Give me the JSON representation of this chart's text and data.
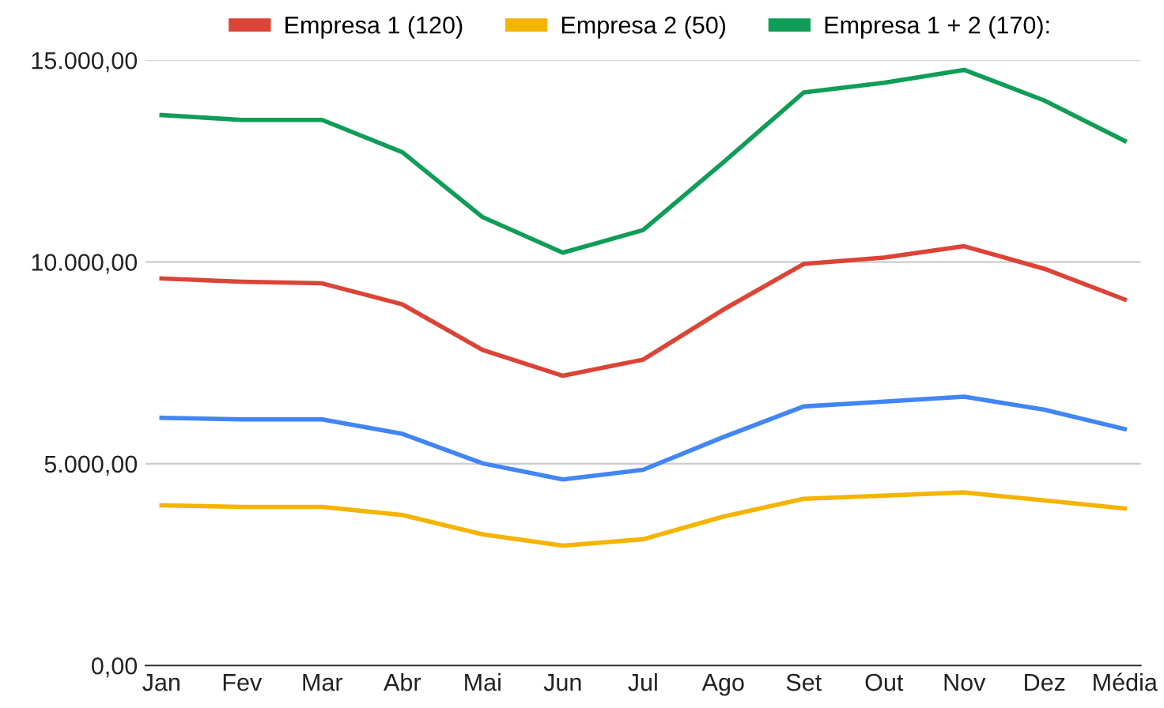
{
  "chart_data": {
    "type": "line",
    "categories": [
      "Jan",
      "Fev",
      "Mar",
      "Abr",
      "Mai",
      "Jun",
      "Jul",
      "Ago",
      "Set",
      "Out",
      "Nov",
      "Dez",
      "Média"
    ],
    "series": [
      {
        "color": "#4285f4",
        "values": [
          6140,
          6100,
          6100,
          5740,
          5010,
          4610,
          4850,
          5660,
          6420,
          6540,
          6660,
          6340,
          5860
        ]
      },
      {
        "name": "Empresa 1 (120)",
        "color": "#db4437",
        "values": [
          9590,
          9510,
          9470,
          8950,
          7820,
          7180,
          7580,
          8820,
          9950,
          10110,
          10390,
          9830,
          9070
        ]
      },
      {
        "name": "Empresa 2 (50)",
        "color": "#f4b400",
        "values": [
          3970,
          3930,
          3930,
          3730,
          3250,
          2970,
          3130,
          3690,
          4130,
          4210,
          4290,
          4090,
          3890
        ]
      },
      {
        "name": "Empresa 1 + 2 (170):",
        "color": "#0f9d58",
        "values": [
          13640,
          13520,
          13520,
          12720,
          11110,
          10230,
          10790,
          12470,
          14200,
          14440,
          14760,
          14000,
          13000
        ]
      }
    ],
    "ylim": [
      0,
      15000
    ],
    "yticks": [
      {
        "value": 0,
        "label": "0,00"
      },
      {
        "value": 5000,
        "label": "5.000,00"
      },
      {
        "value": 10000,
        "label": "10.000,00"
      },
      {
        "value": 15000,
        "label": "15.000,00"
      }
    ],
    "grid": "y",
    "legend": "top",
    "marker": "none",
    "line_style": "solid"
  }
}
